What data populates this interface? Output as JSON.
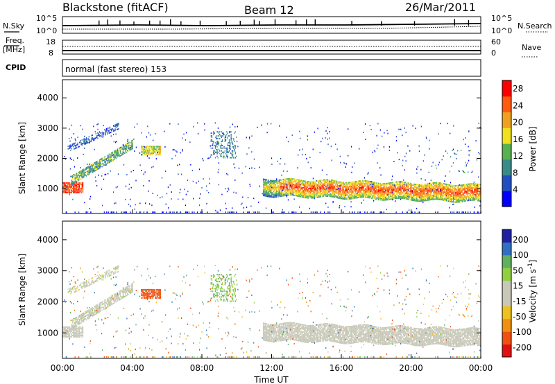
{
  "header": {
    "station": "Blackstone (fitACF)",
    "beam": "Beam 12",
    "date": "26/Mar/2011"
  },
  "strip_panels": {
    "nsky_label": "N.Sky",
    "nsearch_label": "N.Search",
    "freq_label_top": "Freq.",
    "freq_label_unit": "[MHz]",
    "nave_label": "Nave",
    "cpid_label": "CPID",
    "cpid_value": "normal (fast stereo) 153",
    "nsky_ticks": [
      "10^5",
      "10^0"
    ],
    "nsearch_ticks": [
      "10^5",
      "10^0"
    ],
    "freq_ticks": [
      "18",
      "8"
    ],
    "nave_ticks": [
      "60",
      "0"
    ]
  },
  "chart_data": [
    {
      "type": "heatmap",
      "title": "",
      "xlabel": "",
      "ylabel": "Slant Range [km]",
      "xlim_hours": [
        0,
        24
      ],
      "ylim": [
        180,
        4600
      ],
      "yticks": [
        "1000",
        "2000",
        "3000",
        "4000"
      ],
      "colorbar": {
        "label": "Power [dB]",
        "ticks": [
          "4",
          "8",
          "12",
          "16",
          "20",
          "24",
          "28"
        ],
        "range": [
          0,
          30
        ],
        "colors": [
          "#0000ff",
          "#2050c0",
          "#3a8a8a",
          "#58b050",
          "#f0e020",
          "#f0a020",
          "#ff5a10",
          "#ff0000"
        ]
      },
      "features": [
        {
          "name": "main band",
          "time_hours": [
            11.5,
            24
          ],
          "range_km": [
            700,
            1300
          ],
          "power_db": [
            10,
            28
          ]
        },
        {
          "name": "early echoes",
          "time_hours": [
            0,
            1.2
          ],
          "range_km": [
            850,
            1200
          ],
          "power_db": [
            20,
            28
          ]
        },
        {
          "name": "rising band",
          "time_hours": [
            0.5,
            4
          ],
          "range_km": [
            1200,
            2500
          ],
          "power_db": [
            6,
            18
          ]
        },
        {
          "name": "patch 05 UT",
          "time_hours": [
            4.5,
            5.6
          ],
          "range_km": [
            2100,
            2400
          ],
          "power_db": [
            12,
            20
          ]
        },
        {
          "name": "patch 09 UT",
          "time_hours": [
            8.5,
            10
          ],
          "range_km": [
            2000,
            2900
          ],
          "power_db": [
            6,
            12
          ]
        }
      ]
    },
    {
      "type": "heatmap",
      "title": "",
      "xlabel": "Time UT",
      "ylabel": "Slant Range [km]",
      "xlim_hours": [
        0,
        24
      ],
      "ylim": [
        180,
        4600
      ],
      "yticks": [
        "1000",
        "2000",
        "3000",
        "4000"
      ],
      "xticks": [
        "00:00",
        "04:00",
        "08:00",
        "12:00",
        "16:00",
        "20:00",
        "00:00"
      ],
      "colorbar": {
        "label": "Velocity [m s^-1]",
        "ticks": [
          "200",
          "100",
          "50",
          "15",
          "-15",
          "-50",
          "-100",
          "-200"
        ],
        "colors": [
          "#2020a0",
          "#3070c0",
          "#60b060",
          "#90d040",
          "#c8c8b8",
          "#c8c8b8",
          "#f0c020",
          "#f09010",
          "#f05010",
          "#e01010"
        ]
      },
      "features": [
        {
          "name": "ground scatter band",
          "time_hours": [
            11.5,
            24
          ],
          "range_km": [
            700,
            1300
          ],
          "velocity_ms": [
            -15,
            15
          ]
        },
        {
          "name": "patch 05 UT",
          "time_hours": [
            4.5,
            5.6
          ],
          "range_km": [
            2100,
            2400
          ],
          "velocity_ms": [
            -200,
            -100
          ]
        },
        {
          "name": "patch 09 UT",
          "time_hours": [
            8.5,
            10
          ],
          "range_km": [
            2000,
            2900
          ],
          "velocity_ms": [
            30,
            80
          ]
        }
      ]
    }
  ],
  "sky_spikes": [
    2.1,
    2.6,
    3.3,
    4.1,
    5.0,
    5.6,
    6.2,
    6.8,
    7.9,
    9.4,
    10.2,
    11.0,
    11.3,
    12.2,
    13.4,
    14.0,
    14.5,
    16.6,
    18.3,
    20.2,
    22.5,
    23.3
  ]
}
